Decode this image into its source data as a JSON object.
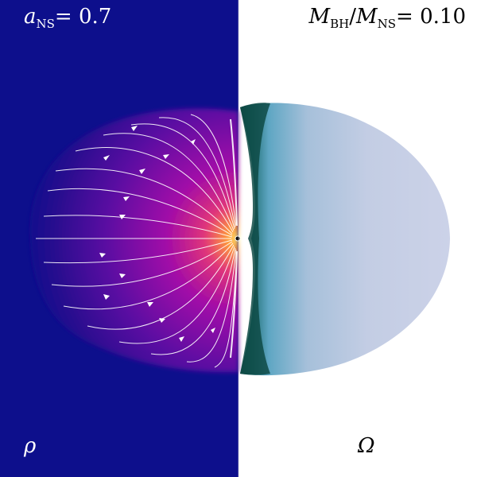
{
  "annotations": {
    "spin": {
      "symbol": "a",
      "subscript": "NS",
      "value": "= 0.7"
    },
    "mass_ratio": {
      "sym1": "M",
      "sub1": "BH",
      "slash": "/",
      "sym2": "M",
      "sub2": "NS",
      "value": "= 0.10"
    },
    "left_panel_symbol": "ρ",
    "right_panel_symbol": "Ω"
  },
  "colors": {
    "left_background": "#0d0f8c",
    "right_background": "#ffffff",
    "density_outer": "#2a0a8f",
    "density_mid": "#a10aa8",
    "density_core": "#ffd24a",
    "omega_edge": "#0e3d35",
    "omega_inner": "#5ea6c3",
    "omega_outer": "#c9d0e6",
    "streamlines": "#ffffff"
  }
}
